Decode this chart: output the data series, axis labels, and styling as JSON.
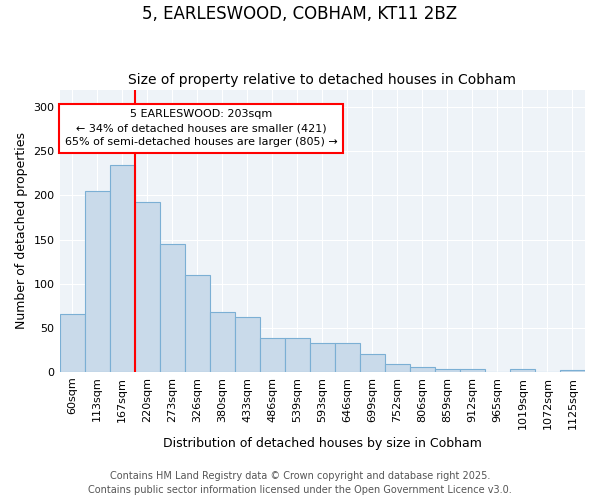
{
  "title": "5, EARLESWOOD, COBHAM, KT11 2BZ",
  "subtitle": "Size of property relative to detached houses in Cobham",
  "xlabel": "Distribution of detached houses by size in Cobham",
  "ylabel": "Number of detached properties",
  "bar_values": [
    65,
    205,
    235,
    193,
    145,
    110,
    68,
    62,
    38,
    38,
    33,
    33,
    20,
    9,
    5,
    3,
    3,
    0,
    3,
    0,
    2
  ],
  "bar_labels": [
    "60sqm",
    "113sqm",
    "167sqm",
    "220sqm",
    "273sqm",
    "326sqm",
    "380sqm",
    "433sqm",
    "486sqm",
    "539sqm",
    "593sqm",
    "646sqm",
    "699sqm",
    "752sqm",
    "806sqm",
    "859sqm",
    "912sqm",
    "965sqm",
    "1019sqm",
    "1072sqm",
    "1125sqm"
  ],
  "bar_color": "#c9daea",
  "bar_edge_color": "#7bafd4",
  "grid_color": "#d8e4f0",
  "vline_x": 2.5,
  "vline_color": "red",
  "annotation_line1": "5 EARLESWOOD: 203sqm",
  "annotation_line2": "← 34% of detached houses are smaller (421)",
  "annotation_line3": "65% of semi-detached houses are larger (805) →",
  "footer_line1": "Contains HM Land Registry data © Crown copyright and database right 2025.",
  "footer_line2": "Contains public sector information licensed under the Open Government Licence v3.0.",
  "ylim": [
    0,
    320
  ],
  "yticks": [
    0,
    50,
    100,
    150,
    200,
    250,
    300
  ],
  "title_fontsize": 12,
  "subtitle_fontsize": 10,
  "xlabel_fontsize": 9,
  "ylabel_fontsize": 9,
  "tick_fontsize": 8,
  "annot_fontsize": 8,
  "footer_fontsize": 7
}
